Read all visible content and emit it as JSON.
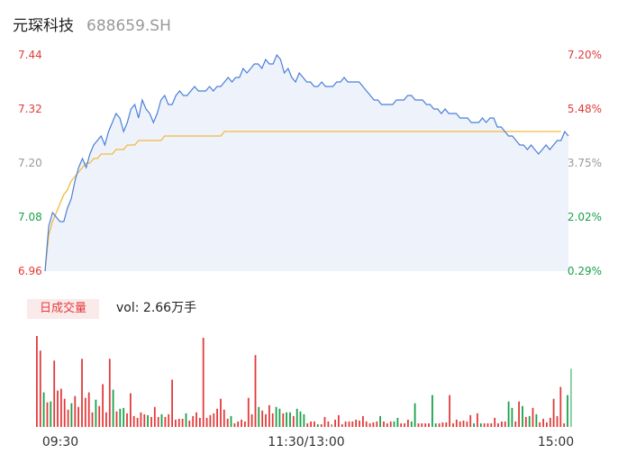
{
  "header": {
    "name": "元琛科技",
    "code": "688659.SH"
  },
  "volume_panel": {
    "tab_label": "日成交量",
    "vol_text": "vol: 2.66万手"
  },
  "colors": {
    "price_line": "#4a7fd8",
    "avg_line": "#f2b940",
    "up": "#e23b3b",
    "down": "#1aa14a",
    "neutral": "#999999",
    "area_fill": "#eef3fb"
  },
  "chart_data": [
    {
      "type": "line",
      "title": "",
      "ylim": [
        6.96,
        7.44
      ],
      "y_ticks": [
        "7.44",
        "7.32",
        "7.20",
        "7.08",
        "6.96"
      ],
      "y_ticks_right": [
        "7.20%",
        "5.48%",
        "3.75%",
        "2.02%",
        "0.29%"
      ],
      "x_ticks": [
        "09:30",
        "11:30/13:00",
        "15:00"
      ],
      "series": [
        {
          "role": "price",
          "values": [
            6.96,
            7.06,
            7.09,
            7.08,
            7.07,
            7.07,
            7.1,
            7.12,
            7.16,
            7.19,
            7.21,
            7.19,
            7.22,
            7.24,
            7.25,
            7.26,
            7.24,
            7.27,
            7.29,
            7.31,
            7.3,
            7.27,
            7.29,
            7.32,
            7.33,
            7.3,
            7.34,
            7.32,
            7.31,
            7.29,
            7.31,
            7.34,
            7.35,
            7.33,
            7.33,
            7.35,
            7.36,
            7.35,
            7.35,
            7.36,
            7.37,
            7.36,
            7.36,
            7.36,
            7.37,
            7.36,
            7.37,
            7.37,
            7.38,
            7.39,
            7.38,
            7.39,
            7.39,
            7.41,
            7.4,
            7.41,
            7.42,
            7.42,
            7.41,
            7.43,
            7.42,
            7.42,
            7.44,
            7.43,
            7.4,
            7.41,
            7.39,
            7.38,
            7.4,
            7.39,
            7.38,
            7.38,
            7.37,
            7.37,
            7.38,
            7.37,
            7.37,
            7.37,
            7.38,
            7.38,
            7.39,
            7.38,
            7.38,
            7.38,
            7.38,
            7.37,
            7.36,
            7.35,
            7.34,
            7.34,
            7.33,
            7.33,
            7.33,
            7.33,
            7.34,
            7.34,
            7.34,
            7.35,
            7.35,
            7.34,
            7.34,
            7.34,
            7.33,
            7.33,
            7.32,
            7.32,
            7.31,
            7.32,
            7.31,
            7.31,
            7.31,
            7.3,
            7.3,
            7.3,
            7.29,
            7.29,
            7.29,
            7.3,
            7.29,
            7.3,
            7.3,
            7.28,
            7.28,
            7.27,
            7.26,
            7.26,
            7.25,
            7.24,
            7.24,
            7.23,
            7.24,
            7.23,
            7.22,
            7.23,
            7.24,
            7.23,
            7.24,
            7.25,
            7.25,
            7.27,
            7.26
          ]
        },
        {
          "role": "average",
          "values": [
            6.96,
            7.04,
            7.07,
            7.09,
            7.11,
            7.13,
            7.14,
            7.16,
            7.17,
            7.18,
            7.19,
            7.2,
            7.2,
            7.21,
            7.21,
            7.22,
            7.22,
            7.22,
            7.22,
            7.23,
            7.23,
            7.23,
            7.24,
            7.24,
            7.24,
            7.25,
            7.25,
            7.25,
            7.25,
            7.25,
            7.25,
            7.25,
            7.26,
            7.26,
            7.26,
            7.26,
            7.26,
            7.26,
            7.26,
            7.26,
            7.26,
            7.26,
            7.26,
            7.26,
            7.26,
            7.26,
            7.26,
            7.26,
            7.27,
            7.27,
            7.27,
            7.27,
            7.27,
            7.27,
            7.27,
            7.27,
            7.27,
            7.27,
            7.27,
            7.27,
            7.27,
            7.27,
            7.27,
            7.27,
            7.27,
            7.27,
            7.27,
            7.27,
            7.27,
            7.27,
            7.27,
            7.27,
            7.27,
            7.27,
            7.27,
            7.27,
            7.27,
            7.27,
            7.27,
            7.27,
            7.27,
            7.27,
            7.27,
            7.27,
            7.27,
            7.27,
            7.27,
            7.27,
            7.27,
            7.27,
            7.27,
            7.27,
            7.27,
            7.27,
            7.27,
            7.27,
            7.27,
            7.27,
            7.27,
            7.27,
            7.27,
            7.27,
            7.27,
            7.27,
            7.27,
            7.27,
            7.27,
            7.27,
            7.27,
            7.27,
            7.27,
            7.27,
            7.27,
            7.27,
            7.27,
            7.27,
            7.27,
            7.27,
            7.27,
            7.27,
            7.27,
            7.27,
            7.27,
            7.27,
            7.27,
            7.27,
            7.27,
            7.27,
            7.27,
            7.27,
            7.27,
            7.27,
            7.27,
            7.27,
            7.27,
            7.27,
            7.27,
            7.27,
            7.27
          ]
        }
      ]
    },
    {
      "type": "bar",
      "title": "",
      "vmax": 100,
      "bars": [
        {
          "v": 100,
          "c": "up"
        },
        {
          "v": 84,
          "c": "up"
        },
        {
          "v": 38,
          "c": "down"
        },
        {
          "v": 27,
          "c": "up"
        },
        {
          "v": 28,
          "c": "down"
        },
        {
          "v": 73,
          "c": "up"
        },
        {
          "v": 40,
          "c": "up"
        },
        {
          "v": 42,
          "c": "up"
        },
        {
          "v": 31,
          "c": "up"
        },
        {
          "v": 19,
          "c": "up"
        },
        {
          "v": 26,
          "c": "down"
        },
        {
          "v": 34,
          "c": "up"
        },
        {
          "v": 22,
          "c": "up"
        },
        {
          "v": 75,
          "c": "up"
        },
        {
          "v": 32,
          "c": "up"
        },
        {
          "v": 38,
          "c": "up"
        },
        {
          "v": 16,
          "c": "up"
        },
        {
          "v": 30,
          "c": "down"
        },
        {
          "v": 23,
          "c": "up"
        },
        {
          "v": 47,
          "c": "up"
        },
        {
          "v": 16,
          "c": "up"
        },
        {
          "v": 75,
          "c": "up"
        },
        {
          "v": 41,
          "c": "down"
        },
        {
          "v": 17,
          "c": "up"
        },
        {
          "v": 20,
          "c": "down"
        },
        {
          "v": 21,
          "c": "down"
        },
        {
          "v": 15,
          "c": "up"
        },
        {
          "v": 37,
          "c": "up"
        },
        {
          "v": 12,
          "c": "up"
        },
        {
          "v": 10,
          "c": "up"
        },
        {
          "v": 16,
          "c": "up"
        },
        {
          "v": 14,
          "c": "up"
        },
        {
          "v": 13,
          "c": "down"
        },
        {
          "v": 11,
          "c": "up"
        },
        {
          "v": 22,
          "c": "up"
        },
        {
          "v": 11,
          "c": "up"
        },
        {
          "v": 14,
          "c": "down"
        },
        {
          "v": 11,
          "c": "up"
        },
        {
          "v": 14,
          "c": "up"
        },
        {
          "v": 52,
          "c": "up"
        },
        {
          "v": 8,
          "c": "up"
        },
        {
          "v": 9,
          "c": "up"
        },
        {
          "v": 9,
          "c": "up"
        },
        {
          "v": 15,
          "c": "down"
        },
        {
          "v": 7,
          "c": "up"
        },
        {
          "v": 12,
          "c": "up"
        },
        {
          "v": 16,
          "c": "up"
        },
        {
          "v": 10,
          "c": "up"
        },
        {
          "v": 98,
          "c": "up"
        },
        {
          "v": 10,
          "c": "up"
        },
        {
          "v": 13,
          "c": "up"
        },
        {
          "v": 15,
          "c": "up"
        },
        {
          "v": 20,
          "c": "up"
        },
        {
          "v": 31,
          "c": "up"
        },
        {
          "v": 19,
          "c": "up"
        },
        {
          "v": 9,
          "c": "up"
        },
        {
          "v": 12,
          "c": "down"
        },
        {
          "v": 4,
          "c": "up"
        },
        {
          "v": 6,
          "c": "up"
        },
        {
          "v": 8,
          "c": "up"
        },
        {
          "v": 6,
          "c": "up"
        },
        {
          "v": 32,
          "c": "up"
        },
        {
          "v": 14,
          "c": "up"
        },
        {
          "v": 79,
          "c": "up"
        },
        {
          "v": 22,
          "c": "down"
        },
        {
          "v": 18,
          "c": "up"
        },
        {
          "v": 14,
          "c": "up"
        },
        {
          "v": 24,
          "c": "up"
        },
        {
          "v": 15,
          "c": "up"
        },
        {
          "v": 22,
          "c": "down"
        },
        {
          "v": 20,
          "c": "down"
        },
        {
          "v": 15,
          "c": "up"
        },
        {
          "v": 16,
          "c": "down"
        },
        {
          "v": 16,
          "c": "down"
        },
        {
          "v": 12,
          "c": "up"
        },
        {
          "v": 20,
          "c": "down"
        },
        {
          "v": 17,
          "c": "down"
        },
        {
          "v": 14,
          "c": "down"
        },
        {
          "v": 4,
          "c": "up"
        },
        {
          "v": 6,
          "c": "up"
        },
        {
          "v": 6,
          "c": "up"
        },
        {
          "v": 3,
          "c": "down"
        },
        {
          "v": 3,
          "c": "up"
        },
        {
          "v": 11,
          "c": "up"
        },
        {
          "v": 6,
          "c": "up"
        },
        {
          "v": 3,
          "c": "neutral"
        },
        {
          "v": 8,
          "c": "up"
        },
        {
          "v": 13,
          "c": "up"
        },
        {
          "v": 3,
          "c": "up"
        },
        {
          "v": 6,
          "c": "up"
        },
        {
          "v": 6,
          "c": "up"
        },
        {
          "v": 6,
          "c": "up"
        },
        {
          "v": 8,
          "c": "up"
        },
        {
          "v": 7,
          "c": "up"
        },
        {
          "v": 12,
          "c": "up"
        },
        {
          "v": 6,
          "c": "up"
        },
        {
          "v": 4,
          "c": "up"
        },
        {
          "v": 5,
          "c": "up"
        },
        {
          "v": 6,
          "c": "up"
        },
        {
          "v": 12,
          "c": "down"
        },
        {
          "v": 6,
          "c": "up"
        },
        {
          "v": 4,
          "c": "up"
        },
        {
          "v": 6,
          "c": "up"
        },
        {
          "v": 6,
          "c": "down"
        },
        {
          "v": 10,
          "c": "down"
        },
        {
          "v": 4,
          "c": "up"
        },
        {
          "v": 4,
          "c": "up"
        },
        {
          "v": 8,
          "c": "up"
        },
        {
          "v": 6,
          "c": "down"
        },
        {
          "v": 26,
          "c": "down"
        },
        {
          "v": 4,
          "c": "up"
        },
        {
          "v": 4,
          "c": "up"
        },
        {
          "v": 4,
          "c": "up"
        },
        {
          "v": 4,
          "c": "up"
        },
        {
          "v": 35,
          "c": "down"
        },
        {
          "v": 4,
          "c": "down"
        },
        {
          "v": 4,
          "c": "up"
        },
        {
          "v": 5,
          "c": "up"
        },
        {
          "v": 5,
          "c": "up"
        },
        {
          "v": 35,
          "c": "up"
        },
        {
          "v": 4,
          "c": "up"
        },
        {
          "v": 8,
          "c": "up"
        },
        {
          "v": 6,
          "c": "up"
        },
        {
          "v": 7,
          "c": "up"
        },
        {
          "v": 6,
          "c": "up"
        },
        {
          "v": 13,
          "c": "up"
        },
        {
          "v": 4,
          "c": "down"
        },
        {
          "v": 15,
          "c": "up"
        },
        {
          "v": 4,
          "c": "down"
        },
        {
          "v": 4,
          "c": "up"
        },
        {
          "v": 4,
          "c": "up"
        },
        {
          "v": 4,
          "c": "up"
        },
        {
          "v": 10,
          "c": "up"
        },
        {
          "v": 4,
          "c": "up"
        },
        {
          "v": 6,
          "c": "up"
        },
        {
          "v": 6,
          "c": "up"
        },
        {
          "v": 28,
          "c": "down"
        },
        {
          "v": 21,
          "c": "down"
        },
        {
          "v": 6,
          "c": "up"
        },
        {
          "v": 28,
          "c": "up"
        },
        {
          "v": 23,
          "c": "down"
        },
        {
          "v": 11,
          "c": "up"
        },
        {
          "v": 12,
          "c": "down"
        },
        {
          "v": 21,
          "c": "up"
        },
        {
          "v": 14,
          "c": "down"
        },
        {
          "v": 5,
          "c": "up"
        },
        {
          "v": 9,
          "c": "up"
        },
        {
          "v": 5,
          "c": "up"
        },
        {
          "v": 10,
          "c": "up"
        },
        {
          "v": 31,
          "c": "up"
        },
        {
          "v": 12,
          "c": "up"
        },
        {
          "v": 44,
          "c": "up"
        },
        {
          "v": 4,
          "c": "up"
        },
        {
          "v": 35,
          "c": "down"
        },
        {
          "v": 64,
          "c": "down"
        }
      ]
    }
  ]
}
